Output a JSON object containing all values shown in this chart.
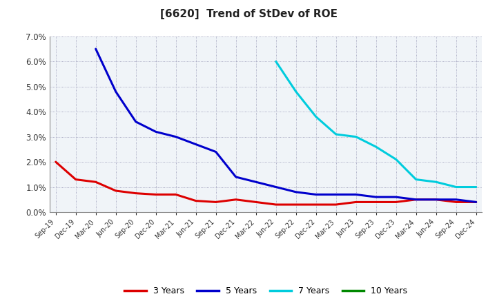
{
  "title": "[6620]  Trend of StDev of ROE",
  "title_fontsize": 11,
  "background_color": "#ffffff",
  "plot_bg_color": "#f0f4f8",
  "grid_color": "#8888aa",
  "ylim": [
    0.0,
    0.07
  ],
  "yticks": [
    0.0,
    0.01,
    0.02,
    0.03,
    0.04,
    0.05,
    0.06,
    0.07
  ],
  "x_labels": [
    "Sep-19",
    "Dec-19",
    "Mar-20",
    "Jun-20",
    "Sep-20",
    "Dec-20",
    "Mar-21",
    "Jun-21",
    "Sep-21",
    "Dec-21",
    "Mar-22",
    "Jun-22",
    "Sep-22",
    "Dec-22",
    "Mar-23",
    "Jun-23",
    "Sep-23",
    "Dec-23",
    "Mar-24",
    "Jun-24",
    "Sep-24",
    "Dec-24"
  ],
  "series_3y": {
    "color": "#dd0000",
    "label": "3 Years",
    "values": [
      0.02,
      0.013,
      0.012,
      0.0085,
      0.0075,
      0.007,
      0.007,
      0.0045,
      0.004,
      0.005,
      0.004,
      0.003,
      0.003,
      0.003,
      0.003,
      0.004,
      0.004,
      0.004,
      0.005,
      0.005,
      0.004,
      0.004
    ]
  },
  "series_5y": {
    "color": "#0000cc",
    "label": "5 Years",
    "values": [
      null,
      null,
      0.065,
      0.048,
      0.036,
      0.032,
      0.03,
      0.027,
      0.024,
      0.014,
      0.012,
      0.01,
      0.008,
      0.007,
      0.007,
      0.007,
      0.006,
      0.006,
      0.005,
      0.005,
      0.005,
      0.004
    ]
  },
  "series_7y": {
    "color": "#00ccdd",
    "label": "7 Years",
    "values": [
      null,
      null,
      null,
      null,
      null,
      null,
      null,
      null,
      null,
      null,
      null,
      0.06,
      0.048,
      0.038,
      0.031,
      0.03,
      0.026,
      0.021,
      0.013,
      0.012,
      0.01,
      0.01
    ]
  },
  "series_10y": {
    "color": "#008800",
    "label": "10 Years",
    "values": [
      null,
      null,
      null,
      null,
      null,
      null,
      null,
      null,
      null,
      null,
      null,
      null,
      null,
      null,
      null,
      null,
      null,
      null,
      null,
      null,
      null,
      null
    ]
  },
  "linewidth": 2.2
}
